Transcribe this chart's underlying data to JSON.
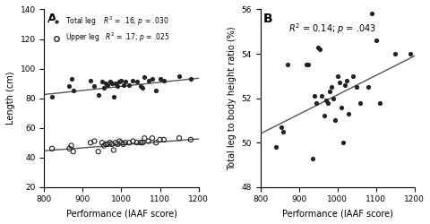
{
  "panel_A": {
    "title": "A",
    "xlabel": "Performance (IAAF score)",
    "ylabel": "Length (cm)",
    "xlim": [
      800,
      1200
    ],
    "ylim": [
      20,
      140
    ],
    "xticks": [
      800,
      900,
      1000,
      1100,
      1200
    ],
    "yticks": [
      20,
      40,
      60,
      80,
      100,
      120,
      140
    ],
    "total_leg_x": [
      820,
      865,
      870,
      875,
      920,
      930,
      940,
      950,
      955,
      960,
      965,
      970,
      975,
      980,
      985,
      990,
      995,
      1000,
      1005,
      1010,
      1020,
      1030,
      1040,
      1050,
      1055,
      1060,
      1070,
      1080,
      1090,
      1100,
      1110,
      1150,
      1180
    ],
    "total_leg_y": [
      81,
      88,
      93,
      85,
      92,
      88,
      82,
      91,
      87,
      90,
      89,
      91,
      90,
      81,
      90,
      88,
      91,
      92,
      89,
      91,
      89,
      92,
      91,
      88,
      87,
      94,
      92,
      93,
      85,
      93,
      92,
      95,
      93
    ],
    "upper_leg_x": [
      820,
      865,
      870,
      875,
      920,
      930,
      940,
      950,
      955,
      960,
      965,
      970,
      975,
      980,
      985,
      990,
      995,
      1000,
      1005,
      1010,
      1020,
      1030,
      1040,
      1050,
      1055,
      1060,
      1070,
      1080,
      1090,
      1100,
      1110,
      1150,
      1180
    ],
    "upper_leg_y": [
      46,
      46,
      48,
      44,
      50,
      51,
      44,
      50,
      48,
      49,
      49,
      50,
      49,
      45,
      50,
      49,
      51,
      50,
      49,
      50,
      50,
      51,
      50,
      50,
      50,
      53,
      51,
      53,
      50,
      52,
      52,
      53,
      52
    ],
    "total_leg_r2": ".16",
    "total_leg_p": ".030",
    "upper_leg_r2": ".17",
    "upper_leg_p": ".025",
    "total_line_x": [
      800,
      1200
    ],
    "total_line_y": [
      82.5,
      93.5
    ],
    "upper_line_x": [
      800,
      1200
    ],
    "upper_line_y": [
      44.5,
      52.5
    ]
  },
  "panel_B": {
    "title": "B",
    "xlabel": "Performance (IAAF score)",
    "ylabel": "Total leg to body height ratio (%)",
    "xlim": [
      800,
      1200
    ],
    "ylim": [
      48,
      56
    ],
    "xticks": [
      800,
      900,
      1000,
      1100,
      1200
    ],
    "yticks": [
      48,
      50,
      52,
      54,
      56
    ],
    "r2": "0.14",
    "p": ".043",
    "scatter_x": [
      840,
      855,
      860,
      870,
      920,
      925,
      935,
      940,
      945,
      950,
      955,
      960,
      965,
      970,
      975,
      980,
      985,
      990,
      995,
      1000,
      1005,
      1010,
      1015,
      1020,
      1025,
      1030,
      1040,
      1050,
      1060,
      1080,
      1090,
      1100,
      1110,
      1150,
      1190
    ],
    "scatter_y": [
      49.8,
      50.7,
      50.5,
      53.5,
      53.5,
      53.5,
      49.3,
      52.1,
      51.8,
      54.3,
      54.2,
      52.1,
      51.2,
      51.9,
      51.8,
      52.3,
      52.5,
      52.0,
      51.0,
      53.0,
      52.7,
      51.6,
      50.0,
      52.6,
      52.8,
      51.3,
      53.0,
      52.5,
      51.8,
      52.5,
      55.8,
      54.6,
      51.8,
      54.0,
      54.0
    ],
    "line_x": [
      800,
      1200
    ],
    "line_y": [
      50.4,
      53.9
    ]
  },
  "line_color": "#555555",
  "dot_color": "#222222",
  "bg_color": "#ffffff"
}
